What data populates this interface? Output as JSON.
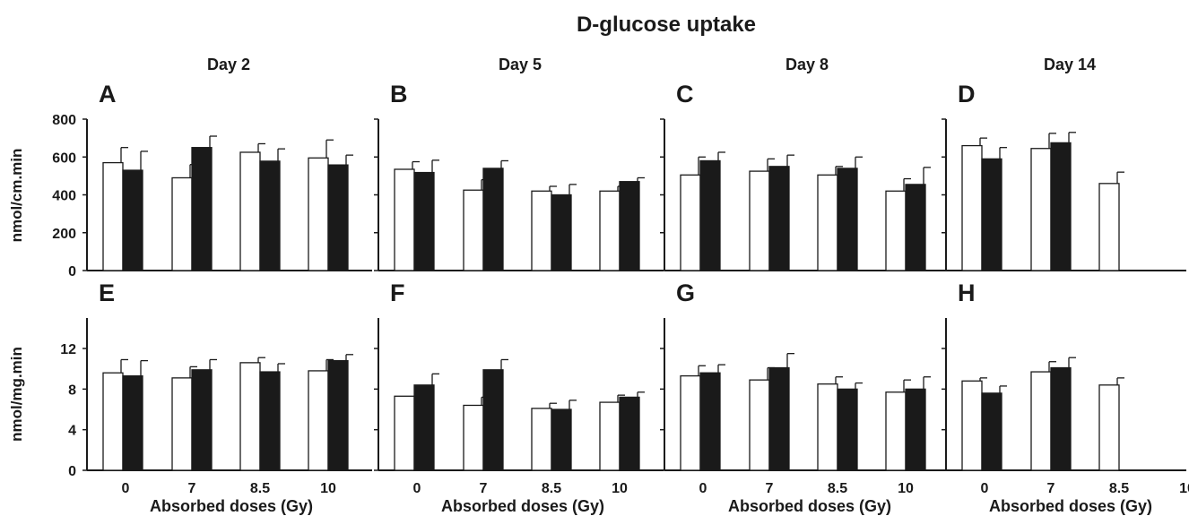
{
  "colors": {
    "control": "#ffffff",
    "treated": "#1a1a1a",
    "stroke": "#1a1a1a"
  },
  "chart_data": {
    "type": "bar",
    "title": "D-glucose uptake",
    "columns": [
      "Day 2",
      "Day 5",
      "Day 8",
      "Day 14"
    ],
    "categories": [
      "0",
      "7",
      "8.5",
      "10"
    ],
    "xlabel": "Absorbed doses (Gy)",
    "rows": [
      {
        "ylabel": "nmol/cm.min",
        "ylim": [
          0,
          800
        ],
        "yticks": [
          "0",
          "200",
          "400",
          "600",
          "800"
        ],
        "panels": [
          {
            "letter": "A",
            "day": "Day 2",
            "white": [
              570,
              490,
              625,
              595
            ],
            "white_err": [
              80,
              70,
              45,
              95
            ],
            "black": [
              530,
              650,
              578,
              558
            ],
            "black_err": [
              100,
              60,
              65,
              52
            ]
          },
          {
            "letter": "B",
            "day": "Day 5",
            "white": [
              535,
              425,
              420,
              420
            ],
            "white_err": [
              40,
              55,
              25,
              25
            ],
            "black": [
              518,
              540,
              400,
              470
            ],
            "black_err": [
              65,
              40,
              55,
              20
            ]
          },
          {
            "letter": "C",
            "day": "Day 8",
            "white": [
              505,
              525,
              505,
              420
            ],
            "white_err": [
              95,
              65,
              45,
              65
            ],
            "black": [
              580,
              550,
              540,
              455
            ],
            "black_err": [
              45,
              60,
              60,
              90
            ]
          },
          {
            "letter": "D",
            "day": "Day 14",
            "white": [
              660,
              645,
              460,
              null
            ],
            "white_err": [
              40,
              80,
              60,
              null
            ],
            "black": [
              590,
              675,
              null,
              null
            ],
            "black_err": [
              60,
              55,
              null,
              null
            ]
          }
        ]
      },
      {
        "ylabel": "nmol/mg.min",
        "ylim": [
          0,
          15
        ],
        "yticks": [
          "0",
          "4",
          "8",
          "12"
        ],
        "panels": [
          {
            "letter": "E",
            "day": "Day 2",
            "white": [
              9.6,
              9.1,
              10.6,
              9.8
            ],
            "white_err": [
              1.3,
              1.1,
              0.5,
              1.1
            ],
            "black": [
              9.3,
              9.9,
              9.7,
              10.8
            ],
            "black_err": [
              1.5,
              1.0,
              0.8,
              0.6
            ]
          },
          {
            "letter": "F",
            "day": "Day 5",
            "white": [
              7.3,
              6.4,
              6.1,
              6.7
            ],
            "white_err": [
              0,
              0.8,
              0.5,
              0.7
            ],
            "black": [
              8.4,
              9.9,
              6.0,
              7.2
            ],
            "black_err": [
              1.1,
              1.0,
              0.9,
              0.5
            ]
          },
          {
            "letter": "G",
            "day": "Day 8",
            "white": [
              9.3,
              8.9,
              8.5,
              7.7
            ],
            "white_err": [
              1.0,
              1.2,
              0.7,
              1.2
            ],
            "black": [
              9.6,
              10.1,
              8.0,
              8.0
            ],
            "black_err": [
              0.8,
              1.4,
              0.6,
              1.2
            ]
          },
          {
            "letter": "H",
            "day": "Day 14",
            "white": [
              8.8,
              9.7,
              8.4,
              null
            ],
            "white_err": [
              0.3,
              1.0,
              0.7,
              null
            ],
            "black": [
              7.6,
              10.1,
              null,
              null
            ],
            "black_err": [
              0.7,
              1.0,
              null,
              null
            ]
          }
        ]
      }
    ]
  }
}
